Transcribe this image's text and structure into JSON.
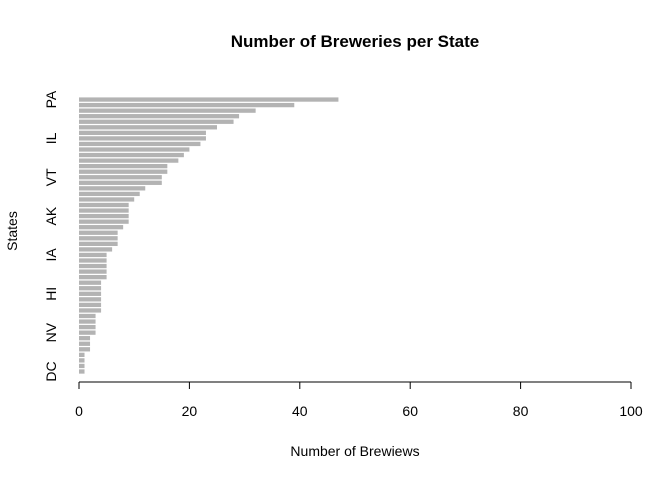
{
  "chart_data": {
    "type": "bar",
    "orientation": "horizontal",
    "title": "Number of Breweries per State",
    "xlabel": "Number of Brewiews",
    "ylabel": "States",
    "xlim": [
      0,
      100
    ],
    "x_ticks": [
      "0",
      "20",
      "40",
      "60",
      "80",
      "100"
    ],
    "y_tick_labels": [
      "PA",
      "IL",
      "VT",
      "AK",
      "IA",
      "HI",
      "NV",
      "DC"
    ],
    "y_tick_bar_index": [
      49,
      42,
      35,
      28,
      21,
      14,
      7,
      0
    ],
    "bar_color": "#b3b3b3",
    "values": [
      1,
      1,
      1,
      1,
      2,
      2,
      2,
      3,
      3,
      3,
      3,
      4,
      4,
      4,
      4,
      4,
      4,
      5,
      5,
      5,
      5,
      5,
      6,
      7,
      7,
      7,
      8,
      9,
      9,
      9,
      9,
      10,
      11,
      12,
      15,
      15,
      16,
      16,
      18,
      19,
      20,
      22,
      23,
      23,
      25,
      28,
      29,
      32,
      39,
      47
    ]
  }
}
